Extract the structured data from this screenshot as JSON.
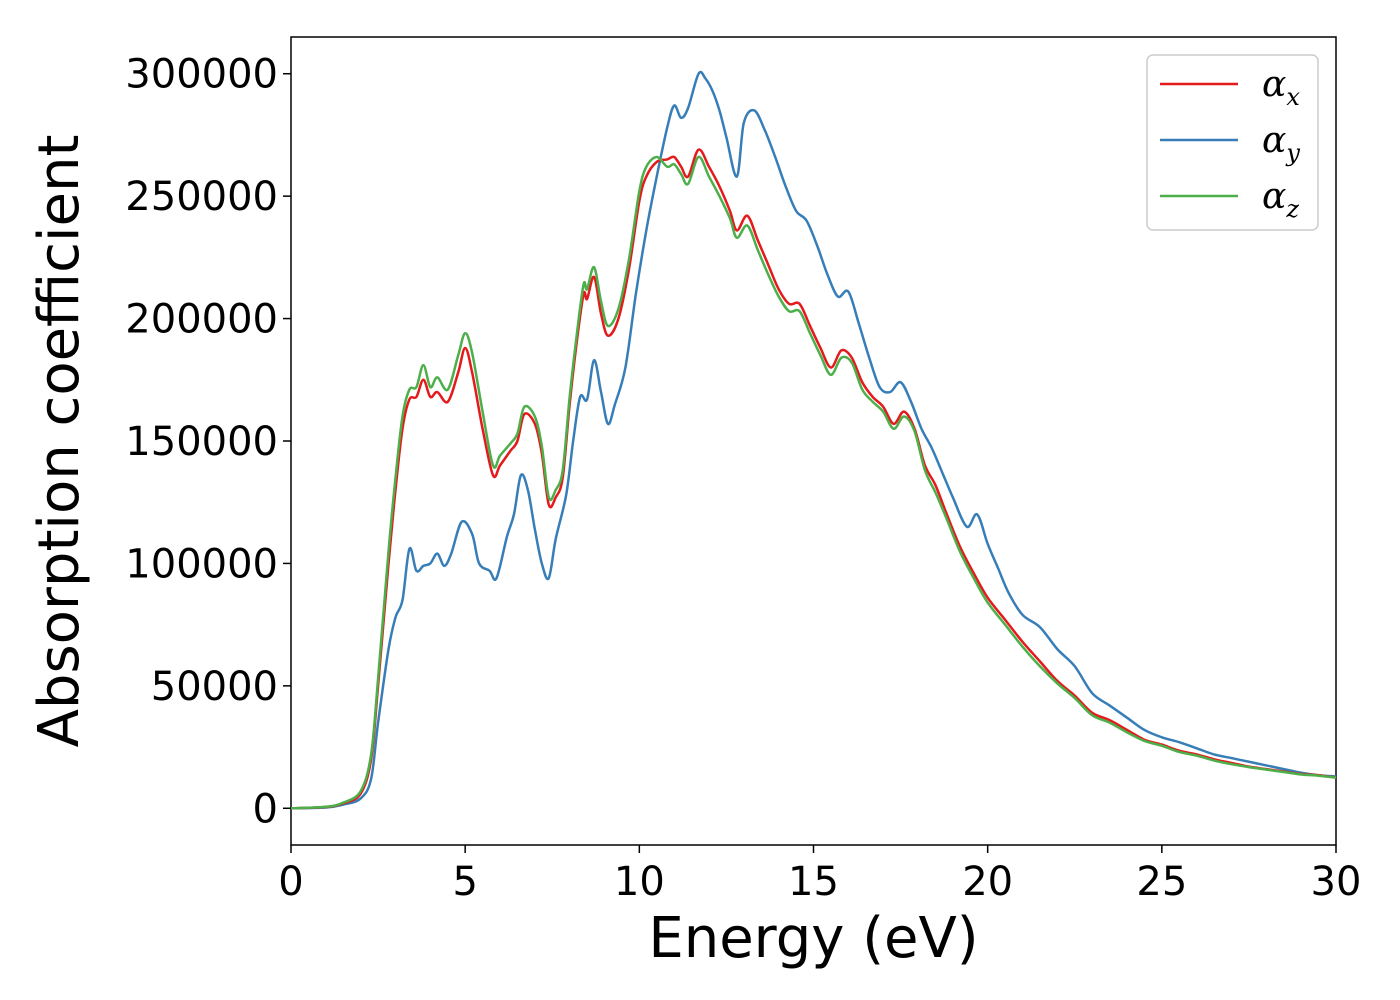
{
  "chart_data": {
    "type": "line",
    "xlabel": "Energy (eV)",
    "ylabel": "Absorption coefficient",
    "xlim": [
      0,
      30
    ],
    "ylim": [
      -15000,
      315000
    ],
    "x_ticks": [
      0,
      5,
      10,
      15,
      20,
      25,
      30
    ],
    "y_ticks": [
      0,
      50000,
      100000,
      150000,
      200000,
      250000,
      300000
    ],
    "grid": false,
    "legend_position": "top-right",
    "series": [
      {
        "name": "α_x",
        "symbol": "α",
        "subscript": "x",
        "color": "#e41a1c",
        "points": [
          [
            0,
            0
          ],
          [
            1.0,
            500
          ],
          [
            1.5,
            2000
          ],
          [
            2.0,
            6000
          ],
          [
            2.3,
            20000
          ],
          [
            2.5,
            50000
          ],
          [
            2.8,
            100000
          ],
          [
            3.0,
            130000
          ],
          [
            3.2,
            155000
          ],
          [
            3.4,
            167000
          ],
          [
            3.6,
            168000
          ],
          [
            3.8,
            175000
          ],
          [
            4.0,
            168000
          ],
          [
            4.2,
            170000
          ],
          [
            4.5,
            166000
          ],
          [
            4.8,
            178000
          ],
          [
            5.0,
            188000
          ],
          [
            5.2,
            178000
          ],
          [
            5.5,
            155000
          ],
          [
            5.8,
            136000
          ],
          [
            6.0,
            140000
          ],
          [
            6.3,
            146000
          ],
          [
            6.5,
            150000
          ],
          [
            6.7,
            161000
          ],
          [
            7.0,
            157000
          ],
          [
            7.2,
            145000
          ],
          [
            7.4,
            124000
          ],
          [
            7.6,
            127000
          ],
          [
            7.8,
            135000
          ],
          [
            8.0,
            165000
          ],
          [
            8.2,
            190000
          ],
          [
            8.4,
            210000
          ],
          [
            8.5,
            208000
          ],
          [
            8.7,
            217000
          ],
          [
            8.9,
            202000
          ],
          [
            9.1,
            193000
          ],
          [
            9.4,
            200000
          ],
          [
            9.7,
            220000
          ],
          [
            10.0,
            248000
          ],
          [
            10.2,
            258000
          ],
          [
            10.5,
            264000
          ],
          [
            10.8,
            265000
          ],
          [
            11.0,
            266000
          ],
          [
            11.2,
            262000
          ],
          [
            11.4,
            258000
          ],
          [
            11.7,
            269000
          ],
          [
            12.0,
            262000
          ],
          [
            12.3,
            254000
          ],
          [
            12.6,
            244000
          ],
          [
            12.8,
            236000
          ],
          [
            13.1,
            242000
          ],
          [
            13.4,
            232000
          ],
          [
            13.7,
            222000
          ],
          [
            14.0,
            212000
          ],
          [
            14.3,
            206000
          ],
          [
            14.6,
            206000
          ],
          [
            14.9,
            197000
          ],
          [
            15.2,
            188000
          ],
          [
            15.5,
            180000
          ],
          [
            15.8,
            187000
          ],
          [
            16.1,
            184000
          ],
          [
            16.4,
            174000
          ],
          [
            16.7,
            168000
          ],
          [
            17.0,
            164000
          ],
          [
            17.3,
            157000
          ],
          [
            17.6,
            162000
          ],
          [
            17.9,
            155000
          ],
          [
            18.2,
            140000
          ],
          [
            18.5,
            132000
          ],
          [
            18.8,
            121000
          ],
          [
            19.2,
            107000
          ],
          [
            19.6,
            96000
          ],
          [
            20.0,
            86000
          ],
          [
            20.5,
            77000
          ],
          [
            21.0,
            68000
          ],
          [
            21.5,
            60000
          ],
          [
            22.0,
            52000
          ],
          [
            22.5,
            46000
          ],
          [
            23.0,
            39000
          ],
          [
            23.5,
            36000
          ],
          [
            24.0,
            32000
          ],
          [
            24.5,
            28000
          ],
          [
            25.0,
            26000
          ],
          [
            25.5,
            23500
          ],
          [
            26.0,
            22000
          ],
          [
            26.5,
            20000
          ],
          [
            27.0,
            18500
          ],
          [
            27.5,
            17000
          ],
          [
            28.0,
            16000
          ],
          [
            28.5,
            15000
          ],
          [
            29.0,
            14000
          ],
          [
            29.5,
            13500
          ],
          [
            30.0,
            12500
          ]
        ]
      },
      {
        "name": "α_y",
        "symbol": "α",
        "subscript": "y",
        "color": "#377eb8",
        "points": [
          [
            0,
            0
          ],
          [
            1.0,
            300
          ],
          [
            1.5,
            1500
          ],
          [
            2.0,
            4000
          ],
          [
            2.3,
            12000
          ],
          [
            2.5,
            35000
          ],
          [
            2.8,
            65000
          ],
          [
            3.0,
            78000
          ],
          [
            3.2,
            85000
          ],
          [
            3.4,
            106000
          ],
          [
            3.6,
            97000
          ],
          [
            3.8,
            99000
          ],
          [
            4.0,
            100000
          ],
          [
            4.2,
            104000
          ],
          [
            4.4,
            99000
          ],
          [
            4.6,
            104000
          ],
          [
            4.9,
            117000
          ],
          [
            5.2,
            112000
          ],
          [
            5.4,
            100000
          ],
          [
            5.7,
            97000
          ],
          [
            5.9,
            94000
          ],
          [
            6.2,
            111000
          ],
          [
            6.4,
            120000
          ],
          [
            6.6,
            136000
          ],
          [
            6.8,
            130000
          ],
          [
            7.0,
            114000
          ],
          [
            7.2,
            100000
          ],
          [
            7.4,
            94000
          ],
          [
            7.6,
            110000
          ],
          [
            7.9,
            128000
          ],
          [
            8.1,
            150000
          ],
          [
            8.3,
            168000
          ],
          [
            8.5,
            167000
          ],
          [
            8.7,
            183000
          ],
          [
            8.9,
            170000
          ],
          [
            9.1,
            157000
          ],
          [
            9.3,
            165000
          ],
          [
            9.6,
            180000
          ],
          [
            9.9,
            210000
          ],
          [
            10.2,
            236000
          ],
          [
            10.5,
            258000
          ],
          [
            10.8,
            278000
          ],
          [
            11.0,
            287000
          ],
          [
            11.2,
            282000
          ],
          [
            11.4,
            286000
          ],
          [
            11.7,
            300000
          ],
          [
            11.9,
            298000
          ],
          [
            12.1,
            293000
          ],
          [
            12.3,
            285000
          ],
          [
            12.5,
            274000
          ],
          [
            12.8,
            258000
          ],
          [
            13.0,
            280000
          ],
          [
            13.3,
            285000
          ],
          [
            13.6,
            277000
          ],
          [
            13.9,
            266000
          ],
          [
            14.2,
            254000
          ],
          [
            14.5,
            244000
          ],
          [
            14.8,
            240000
          ],
          [
            15.1,
            230000
          ],
          [
            15.4,
            218000
          ],
          [
            15.7,
            209000
          ],
          [
            16.0,
            211000
          ],
          [
            16.3,
            198000
          ],
          [
            16.6,
            184000
          ],
          [
            16.9,
            172000
          ],
          [
            17.2,
            170000
          ],
          [
            17.5,
            174000
          ],
          [
            17.8,
            166000
          ],
          [
            18.1,
            155000
          ],
          [
            18.4,
            147000
          ],
          [
            18.7,
            137000
          ],
          [
            19.0,
            127000
          ],
          [
            19.4,
            115000
          ],
          [
            19.7,
            120000
          ],
          [
            20.0,
            108000
          ],
          [
            20.3,
            98000
          ],
          [
            20.6,
            88000
          ],
          [
            21.0,
            79000
          ],
          [
            21.5,
            74000
          ],
          [
            22.0,
            65000
          ],
          [
            22.5,
            58000
          ],
          [
            23.0,
            47000
          ],
          [
            23.5,
            42000
          ],
          [
            24.0,
            37000
          ],
          [
            24.5,
            32000
          ],
          [
            25.0,
            29000
          ],
          [
            25.5,
            27000
          ],
          [
            26.0,
            24500
          ],
          [
            26.5,
            22000
          ],
          [
            27.0,
            20500
          ],
          [
            27.5,
            19000
          ],
          [
            28.0,
            17500
          ],
          [
            28.5,
            16000
          ],
          [
            29.0,
            14500
          ],
          [
            29.5,
            13500
          ],
          [
            30.0,
            13000
          ]
        ]
      },
      {
        "name": "α_z",
        "symbol": "α",
        "subscript": "z",
        "color": "#4daf4a",
        "points": [
          [
            0,
            0
          ],
          [
            1.0,
            600
          ],
          [
            1.5,
            2300
          ],
          [
            2.0,
            7000
          ],
          [
            2.3,
            22000
          ],
          [
            2.5,
            53000
          ],
          [
            2.8,
            105000
          ],
          [
            3.0,
            135000
          ],
          [
            3.2,
            160000
          ],
          [
            3.4,
            171000
          ],
          [
            3.6,
            172000
          ],
          [
            3.8,
            181000
          ],
          [
            4.0,
            172000
          ],
          [
            4.2,
            176000
          ],
          [
            4.5,
            171000
          ],
          [
            4.8,
            185000
          ],
          [
            5.0,
            194000
          ],
          [
            5.2,
            186000
          ],
          [
            5.5,
            162000
          ],
          [
            5.8,
            140000
          ],
          [
            6.0,
            144000
          ],
          [
            6.3,
            149000
          ],
          [
            6.5,
            153000
          ],
          [
            6.7,
            164000
          ],
          [
            7.0,
            160000
          ],
          [
            7.2,
            148000
          ],
          [
            7.4,
            127000
          ],
          [
            7.6,
            130000
          ],
          [
            7.8,
            138000
          ],
          [
            8.0,
            168000
          ],
          [
            8.2,
            193000
          ],
          [
            8.4,
            214000
          ],
          [
            8.5,
            212000
          ],
          [
            8.7,
            221000
          ],
          [
            8.9,
            207000
          ],
          [
            9.1,
            197000
          ],
          [
            9.4,
            204000
          ],
          [
            9.7,
            224000
          ],
          [
            10.0,
            252000
          ],
          [
            10.2,
            262000
          ],
          [
            10.5,
            266000
          ],
          [
            10.8,
            262000
          ],
          [
            11.0,
            263000
          ],
          [
            11.2,
            259000
          ],
          [
            11.4,
            255000
          ],
          [
            11.7,
            266000
          ],
          [
            12.0,
            258000
          ],
          [
            12.3,
            250000
          ],
          [
            12.6,
            241000
          ],
          [
            12.8,
            233000
          ],
          [
            13.1,
            238000
          ],
          [
            13.4,
            228000
          ],
          [
            13.7,
            218000
          ],
          [
            14.0,
            209000
          ],
          [
            14.3,
            203000
          ],
          [
            14.6,
            203000
          ],
          [
            14.9,
            194000
          ],
          [
            15.2,
            185000
          ],
          [
            15.5,
            177000
          ],
          [
            15.8,
            184000
          ],
          [
            16.1,
            182000
          ],
          [
            16.4,
            171000
          ],
          [
            16.7,
            166000
          ],
          [
            17.0,
            162000
          ],
          [
            17.3,
            155000
          ],
          [
            17.6,
            160000
          ],
          [
            17.9,
            154000
          ],
          [
            18.2,
            138000
          ],
          [
            18.5,
            129000
          ],
          [
            18.8,
            119000
          ],
          [
            19.2,
            105000
          ],
          [
            19.6,
            94000
          ],
          [
            20.0,
            84000
          ],
          [
            20.5,
            75000
          ],
          [
            21.0,
            66000
          ],
          [
            21.5,
            58000
          ],
          [
            22.0,
            51000
          ],
          [
            22.5,
            45000
          ],
          [
            23.0,
            38000
          ],
          [
            23.5,
            35000
          ],
          [
            24.0,
            31000
          ],
          [
            24.5,
            27500
          ],
          [
            25.0,
            25500
          ],
          [
            25.5,
            23000
          ],
          [
            26.0,
            21500
          ],
          [
            26.5,
            19500
          ],
          [
            27.0,
            18000
          ],
          [
            27.5,
            16800
          ],
          [
            28.0,
            15800
          ],
          [
            28.5,
            14800
          ],
          [
            29.0,
            13800
          ],
          [
            29.5,
            13300
          ],
          [
            30.0,
            12500
          ]
        ]
      }
    ]
  }
}
